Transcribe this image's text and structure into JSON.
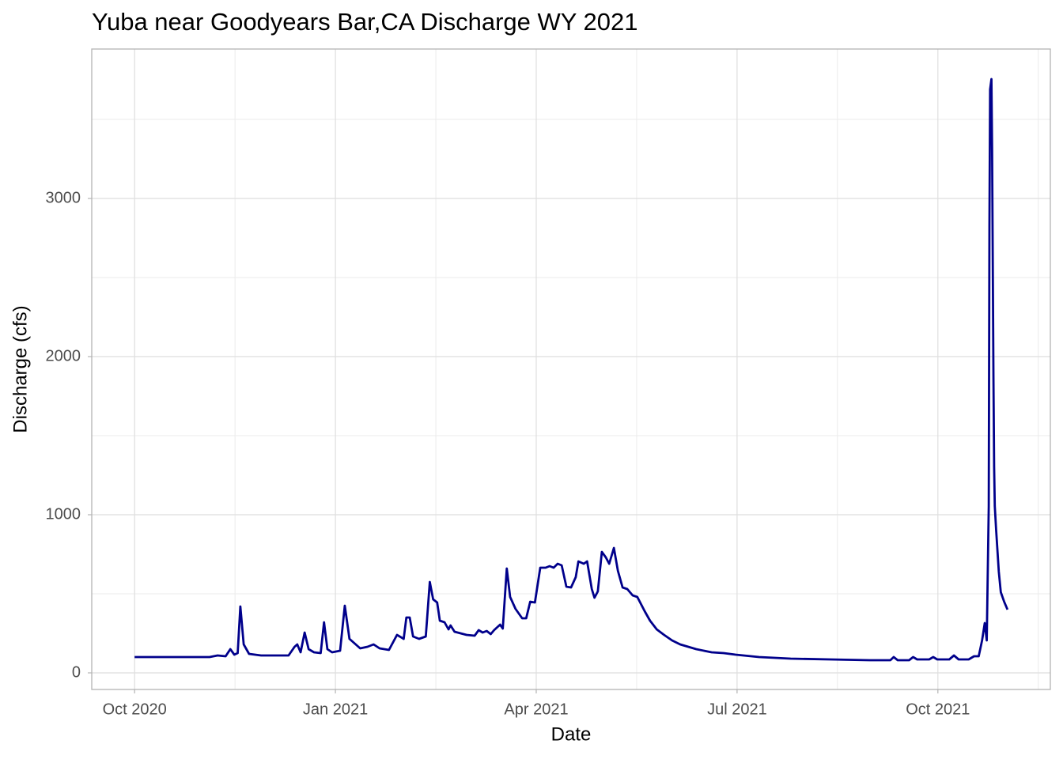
{
  "chart_data": {
    "type": "line",
    "title": "Yuba near Goodyears Bar,CA Discharge WY 2021",
    "x_label": "Date",
    "y_label": "Discharge (cfs)",
    "xlim": [
      -0.64,
      13.68
    ],
    "ylim": [
      -105,
      3945
    ],
    "xticks": [
      {
        "value": 0,
        "label": "Oct 2020"
      },
      {
        "value": 3,
        "label": "Jan 2021"
      },
      {
        "value": 6,
        "label": "Apr 2021"
      },
      {
        "value": 9,
        "label": "Jul 2021"
      },
      {
        "value": 12,
        "label": "Oct 2021"
      }
    ],
    "yticks": [
      0,
      1000,
      2000,
      3000
    ],
    "y_minor_grid": [
      500,
      1500,
      2500,
      3500
    ],
    "x_minor_grid": [
      1.5,
      4.5,
      7.5,
      10.5,
      13.5
    ],
    "grid": true,
    "series": [
      {
        "name": "Discharge",
        "color": "#00008b",
        "x": [
          0,
          0.35,
          1.12,
          1.24,
          1.36,
          1.43,
          1.49,
          1.54,
          1.58,
          1.63,
          1.71,
          1.89,
          2.3,
          2.39,
          2.43,
          2.48,
          2.54,
          2.6,
          2.68,
          2.78,
          2.83,
          2.88,
          2.95,
          3.07,
          3.14,
          3.21,
          3.37,
          3.48,
          3.57,
          3.66,
          3.8,
          3.92,
          4.02,
          4.06,
          4.11,
          4.16,
          4.25,
          4.35,
          4.41,
          4.46,
          4.52,
          4.56,
          4.63,
          4.69,
          4.72,
          4.78,
          4.96,
          5.08,
          5.14,
          5.2,
          5.26,
          5.32,
          5.37,
          5.46,
          5.5,
          5.56,
          5.61,
          5.69,
          5.79,
          5.85,
          5.91,
          5.98,
          6.06,
          6.14,
          6.2,
          6.26,
          6.32,
          6.38,
          6.45,
          6.52,
          6.59,
          6.63,
          6.71,
          6.76,
          6.83,
          6.87,
          6.92,
          6.98,
          7.04,
          7.09,
          7.16,
          7.22,
          7.29,
          7.36,
          7.44,
          7.51,
          7.62,
          7.7,
          7.8,
          7.91,
          8.03,
          8.15,
          8.27,
          8.39,
          8.62,
          8.8,
          8.98,
          9.33,
          9.8,
          10.39,
          10.98,
          11.29,
          11.34,
          11.4,
          11.57,
          11.63,
          11.69,
          11.87,
          11.93,
          11.99,
          12.17,
          12.24,
          12.31,
          12.46,
          12.54,
          12.61,
          12.66,
          12.7,
          12.73,
          12.76,
          12.77,
          12.78,
          12.8,
          12.81,
          12.83,
          12.84,
          12.85,
          12.87,
          12.91,
          12.94,
          12.99,
          13.04
        ],
        "values": [
          100,
          100,
          100,
          110,
          105,
          150,
          115,
          125,
          420,
          180,
          120,
          110,
          110,
          165,
          180,
          130,
          255,
          150,
          130,
          125,
          320,
          150,
          130,
          140,
          425,
          215,
          155,
          165,
          180,
          155,
          145,
          240,
          215,
          350,
          350,
          230,
          215,
          230,
          575,
          465,
          445,
          330,
          320,
          275,
          300,
          260,
          240,
          235,
          270,
          255,
          265,
          245,
          270,
          305,
          280,
          660,
          480,
          405,
          345,
          345,
          450,
          445,
          665,
          665,
          675,
          665,
          690,
          680,
          545,
          540,
          605,
          705,
          690,
          705,
          530,
          475,
          515,
          765,
          730,
          690,
          790,
          645,
          540,
          530,
          490,
          480,
          390,
          330,
          275,
          240,
          205,
          180,
          165,
          150,
          130,
          125,
          115,
          100,
          90,
          85,
          80,
          80,
          100,
          80,
          80,
          100,
          85,
          85,
          100,
          85,
          85,
          110,
          85,
          85,
          105,
          105,
          205,
          315,
          205,
          1055,
          2830,
          3690,
          3755,
          3305,
          1870,
          1305,
          1055,
          905,
          640,
          510,
          450,
          400
        ]
      }
    ]
  }
}
